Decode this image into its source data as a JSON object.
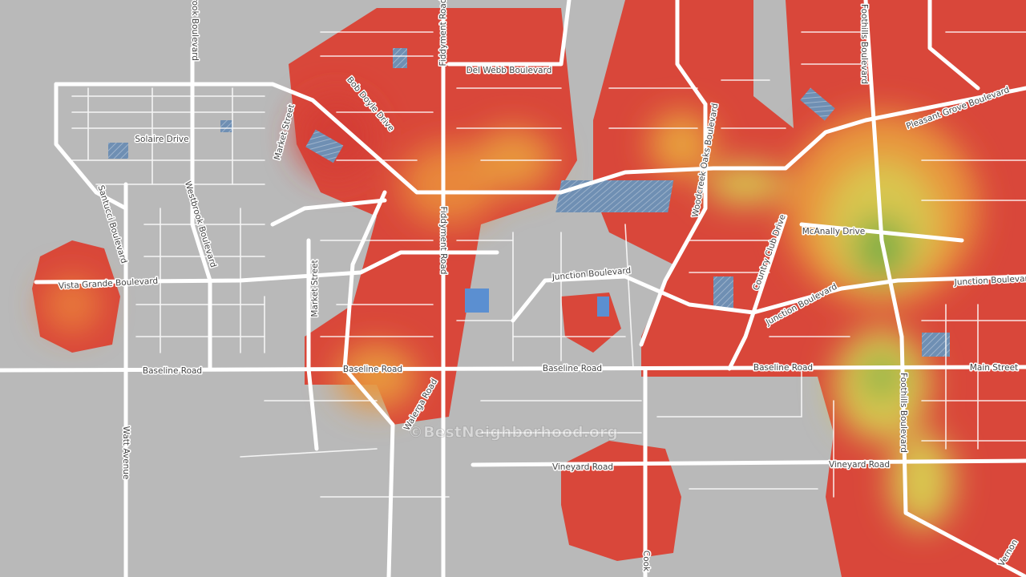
{
  "labels": [
    "Westbrook Boulevard",
    "Fiddyment Road",
    "Del Webb Boulevard",
    "Bob Doyle Drive",
    "Foothills Boulevard",
    "Pleasant Grove Boulevard",
    "Solaire Drive",
    "Market Street",
    "Santucci Boulevard",
    "Westbrook Boulevard",
    "Woodcreek Oaks Boulevard",
    "Country Club Drive",
    "McAnally Drive",
    "Fiddyment Road",
    "Junction Boulevard",
    "Junction Boulevard",
    "Junction Boulevard",
    "Vista Grande Boulevard",
    "Market Street",
    "Baseline Road",
    "Baseline Road",
    "Baseline Road",
    "Baseline Road",
    "Main Street",
    "Walerga Road",
    "Watt Avenue",
    "Foothills Boulevard",
    "Vineyard Road",
    "Vineyard Road",
    "Cook",
    "Vernon"
  ],
  "watermark": "©BestNeighborhood.org"
}
